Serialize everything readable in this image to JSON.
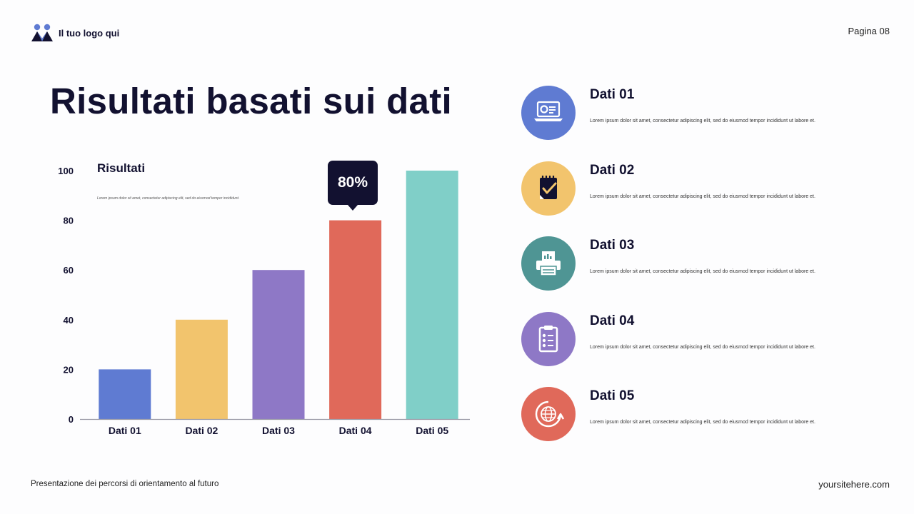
{
  "header": {
    "logo_text": "Il tuo logo qui",
    "page_label": "Pagina 08"
  },
  "title": "Risultati basati sui dati",
  "chart_data": {
    "type": "bar",
    "title": "Risultati",
    "description": "Lorem ipsum dolor sit amet, consectetur adipiscing elit, sed do eiusmod tempor incididunt.",
    "categories": [
      "Dati 01",
      "Dati 02",
      "Dati 03",
      "Dati 04",
      "Dati 05"
    ],
    "values": [
      20,
      40,
      60,
      80,
      100
    ],
    "colors": [
      "#5f7bd2",
      "#f2c46d",
      "#8e78c6",
      "#e0695a",
      "#80cfc8"
    ],
    "yticks": [
      0,
      20,
      40,
      60,
      80,
      100
    ],
    "ylim": [
      0,
      100
    ],
    "xlabel": "",
    "ylabel": "",
    "annotation": {
      "label": "80%",
      "category": "Dati 04"
    }
  },
  "items": [
    {
      "title": "Dati 01",
      "text": "Lorem ipsum dolor sit amet, consectetur adipiscing elit, sed do eiusmod tempor incididunt ut labore et.",
      "color": "#5f7bd2",
      "icon": "laptop-icon"
    },
    {
      "title": "Dati 02",
      "text": "Lorem ipsum dolor sit amet, consectetur adipiscing elit, sed do eiusmod tempor incididunt ut labore et.",
      "color": "#f2c46d",
      "icon": "notepad-check-icon"
    },
    {
      "title": "Dati 03",
      "text": "Lorem ipsum dolor sit amet, consectetur adipiscing elit, sed do eiusmod tempor incididunt ut labore et.",
      "color": "#4f9594",
      "icon": "printer-icon"
    },
    {
      "title": "Dati 04",
      "text": "Lorem ipsum dolor sit amet, consectetur adipiscing elit, sed do eiusmod tempor incididunt ut labore et.",
      "color": "#8e78c6",
      "icon": "clipboard-checklist-icon"
    },
    {
      "title": "Dati 05",
      "text": "Lorem ipsum dolor sit amet, consectetur adipiscing elit, sed do eiusmod tempor incididunt ut labore et.",
      "color": "#e0695a",
      "icon": "globe-refresh-icon"
    }
  ],
  "footer": {
    "left": "Presentazione dei percorsi di orientamento al futuro",
    "right": "yoursitehere.com"
  }
}
